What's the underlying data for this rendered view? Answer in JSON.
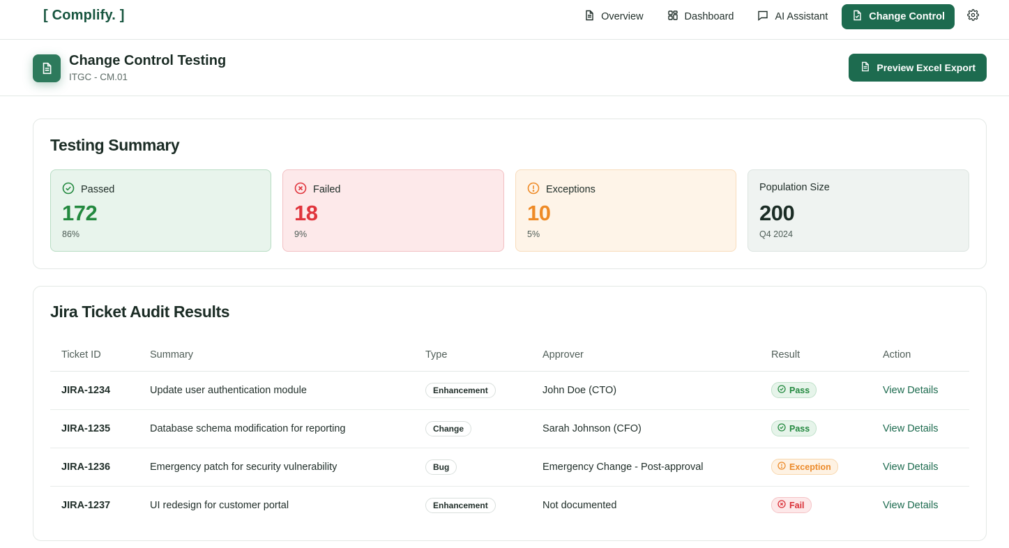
{
  "brand": {
    "logo": "[ Complify. ]"
  },
  "nav": {
    "items": [
      {
        "label": "Overview",
        "icon": "document-icon"
      },
      {
        "label": "Dashboard",
        "icon": "grid-icon"
      },
      {
        "label": "AI Assistant",
        "icon": "chat-icon"
      },
      {
        "label": "Change Control",
        "icon": "document-check-icon",
        "active": true
      }
    ],
    "settings_icon": "gear-icon"
  },
  "header": {
    "title": "Change Control Testing",
    "subtitle": "ITGC - CM.01",
    "export_label": "Preview Excel Export"
  },
  "summary": {
    "title": "Testing Summary",
    "stats": [
      {
        "label": "Passed",
        "value": "172",
        "note": "86%",
        "color": "#23893f"
      },
      {
        "label": "Failed",
        "value": "18",
        "note": "9%",
        "color": "#e0343c"
      },
      {
        "label": "Exceptions",
        "value": "10",
        "note": "5%",
        "color": "#ee8a26"
      },
      {
        "label": "Population Size",
        "value": "200",
        "note": "Q4 2024",
        "color": "#1b2c25"
      }
    ]
  },
  "audit": {
    "title": "Jira Ticket Audit Results",
    "columns": [
      "Ticket ID",
      "Summary",
      "Type",
      "Approver",
      "Result",
      "Action"
    ],
    "rows": [
      {
        "id": "JIRA-1234",
        "summary": "Update user authentication module",
        "type": "Enhancement",
        "approver": "John Doe (CTO)",
        "result": "Pass",
        "action": "View Details"
      },
      {
        "id": "JIRA-1235",
        "summary": "Database schema modification for reporting",
        "type": "Change",
        "approver": "Sarah Johnson (CFO)",
        "result": "Pass",
        "action": "View Details"
      },
      {
        "id": "JIRA-1236",
        "summary": "Emergency patch for security vulnerability",
        "type": "Bug",
        "approver": "Emergency Change - Post-approval",
        "result": "Exception",
        "action": "View Details"
      },
      {
        "id": "JIRA-1237",
        "summary": "UI redesign for customer portal",
        "type": "Enhancement",
        "approver": "Not documented",
        "result": "Fail",
        "action": "View Details"
      }
    ]
  }
}
